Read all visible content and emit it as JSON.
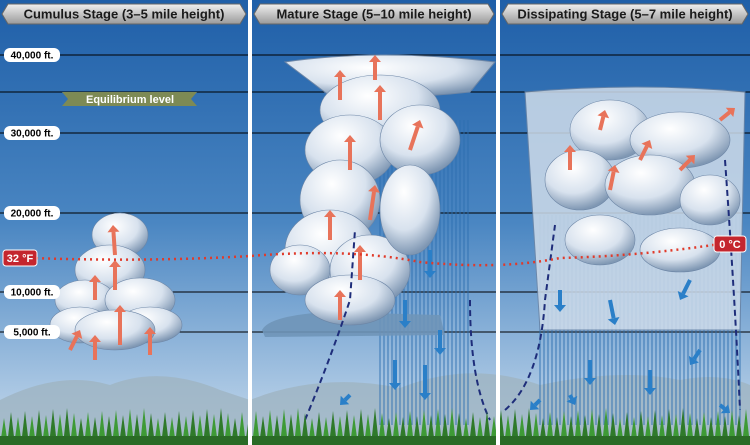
{
  "stages": [
    {
      "title": "Cumulus Stage (3–5 mile height)"
    },
    {
      "title": "Mature Stage (5–10 mile height)"
    },
    {
      "title": "Dissipating Stage (5–7 mile height)"
    }
  ],
  "altitudes": [
    "40,000 ft.",
    "30,000 ft.",
    "20,000 ft.",
    "10,000 ft.",
    "5,000 ft."
  ],
  "equilibrium_label": "Equilibrium level",
  "freezing": {
    "fahrenheit": "32 °F",
    "celsius": "0 °C"
  }
}
